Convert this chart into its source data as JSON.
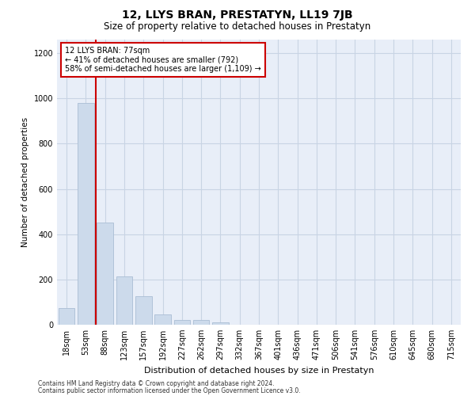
{
  "title": "12, LLYS BRAN, PRESTATYN, LL19 7JB",
  "subtitle": "Size of property relative to detached houses in Prestatyn",
  "xlabel": "Distribution of detached houses by size in Prestatyn",
  "ylabel": "Number of detached properties",
  "bar_labels": [
    "18sqm",
    "53sqm",
    "88sqm",
    "123sqm",
    "157sqm",
    "192sqm",
    "227sqm",
    "262sqm",
    "297sqm",
    "332sqm",
    "367sqm",
    "401sqm",
    "436sqm",
    "471sqm",
    "506sqm",
    "541sqm",
    "576sqm",
    "610sqm",
    "645sqm",
    "680sqm",
    "715sqm"
  ],
  "bar_values": [
    75,
    980,
    450,
    215,
    125,
    45,
    20,
    20,
    10,
    0,
    0,
    0,
    0,
    0,
    0,
    0,
    0,
    0,
    0,
    0,
    0
  ],
  "bar_color": "#ccdaeb",
  "bar_edgecolor": "#aabdd4",
  "property_line_x": 1.5,
  "property_line_label": "12 LLYS BRAN: 77sqm",
  "annotation_line1": "← 41% of detached houses are smaller (792)",
  "annotation_line2": "58% of semi-detached houses are larger (1,109) →",
  "annotation_box_facecolor": "#ffffff",
  "annotation_box_edgecolor": "#cc0000",
  "vline_color": "#cc0000",
  "ylim": [
    0,
    1260
  ],
  "yticks": [
    0,
    200,
    400,
    600,
    800,
    1000,
    1200
  ],
  "grid_color": "#c8d4e4",
  "background_color": "#e8eef8",
  "footer_line1": "Contains HM Land Registry data © Crown copyright and database right 2024.",
  "footer_line2": "Contains public sector information licensed under the Open Government Licence v3.0.",
  "title_fontsize": 10,
  "subtitle_fontsize": 8.5,
  "annotation_fontsize": 7.0,
  "xlabel_fontsize": 8,
  "ylabel_fontsize": 7.5,
  "tick_fontsize": 7,
  "footer_fontsize": 5.5
}
